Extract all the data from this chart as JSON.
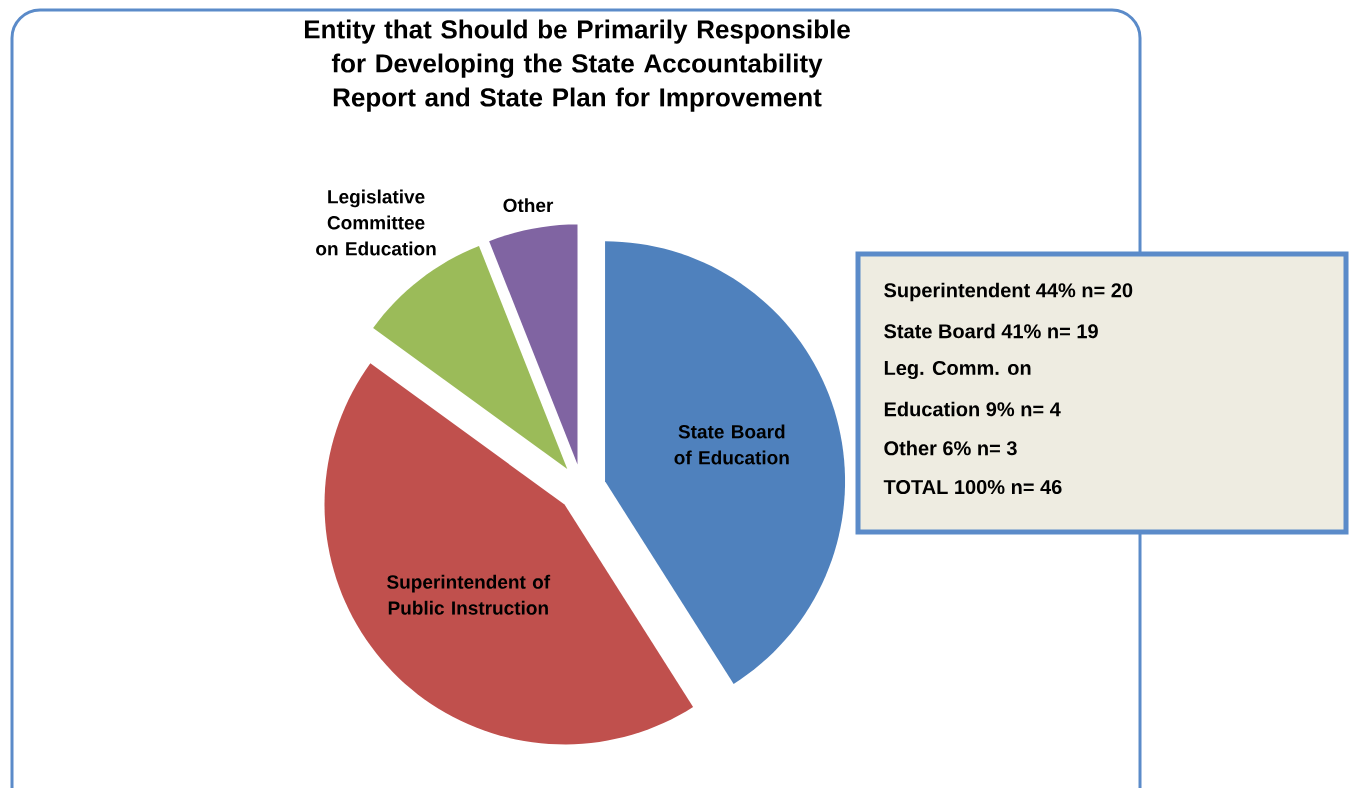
{
  "chart_data": {
    "type": "pie",
    "title": "Entity that Should be Primarily Responsible for Developing the State Accountability Report and State Plan for Improvement",
    "categories": [
      "State Board of Education",
      "Superintendent of Public Instruction",
      "Legislative Committee on Education",
      "Other"
    ],
    "values": [
      41,
      44,
      9,
      6
    ],
    "colors": [
      "#4f81bd",
      "#c0504d",
      "#9bbb59",
      "#8064a2"
    ],
    "annotations": [
      "Superintendent  44%  n= 20",
      "State Board  41%  n= 19",
      "Leg. Comm. on",
      "Education  9%  n= 4",
      "Other  6%  n= 3",
      "TOTAL  100%  n= 46"
    ]
  }
}
